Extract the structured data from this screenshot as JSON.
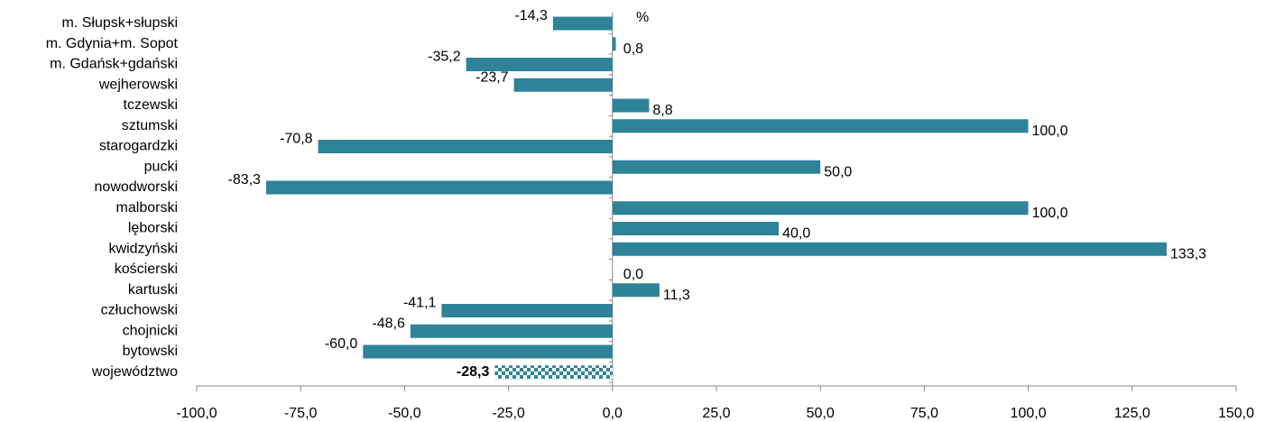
{
  "chart_data": {
    "type": "hbar",
    "annotation": "%",
    "categories": [
      "m. Słupsk+słupski",
      "m. Gdynia+m. Sopot",
      "m. Gdańsk+gdański",
      "wejherowski",
      "tczewski",
      "sztumski",
      "starogardzki",
      "pucki",
      "nowodworski",
      "malborski",
      "lęborski",
      "kwidzyński",
      "kościerski",
      "kartuski",
      "człuchowski",
      "chojnicki",
      "bytowski",
      "województwo"
    ],
    "values": [
      -14.3,
      0.8,
      -35.2,
      -23.7,
      8.8,
      100.0,
      -70.8,
      50.0,
      -83.3,
      100.0,
      40.0,
      133.3,
      0.0,
      11.3,
      -41.1,
      -48.6,
      -60.0,
      -28.3
    ],
    "value_labels": [
      "-14,3",
      "0,8",
      "-35,2",
      "-23,7",
      "8,8",
      "100,0",
      "-70,8",
      "50,0",
      "-83,3",
      "100,0",
      "40,0",
      "133,3",
      "0,0",
      "11,3",
      "-41,1",
      "-48,6",
      "-60,0",
      "-28,3"
    ],
    "bar_styles": [
      "solid",
      "solid",
      "solid",
      "solid",
      "solid",
      "solid",
      "solid",
      "solid",
      "solid",
      "solid",
      "solid",
      "solid",
      "solid",
      "solid",
      "solid",
      "solid",
      "solid",
      "checker"
    ],
    "color": "#2e8399",
    "xlim": [
      -100,
      150
    ],
    "xticks": [
      {
        "value": -100,
        "label": "-100,0"
      },
      {
        "value": -75,
        "label": "-75,0"
      },
      {
        "value": -50,
        "label": "-50,0"
      },
      {
        "value": -25,
        "label": "-25,0"
      },
      {
        "value": 0,
        "label": "0,0"
      },
      {
        "value": 25,
        "label": "25,0"
      },
      {
        "value": 50,
        "label": "50,0"
      },
      {
        "value": 75,
        "label": "75,0"
      },
      {
        "value": 100,
        "label": "100,0"
      },
      {
        "value": 125,
        "label": "125,0"
      },
      {
        "value": 150,
        "label": "150,0"
      }
    ]
  }
}
